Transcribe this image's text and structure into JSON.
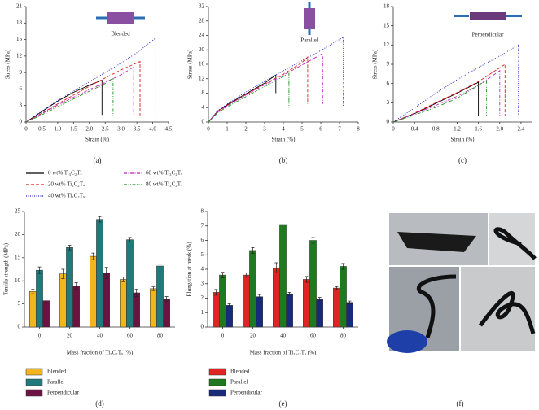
{
  "chart_data": [
    {
      "type": "line",
      "annotation": "Blended",
      "xlabel": "Strain (%)",
      "ylabel": "Stress (MPa)",
      "panel": "(a)",
      "xlim": [
        0,
        4.5
      ],
      "xticks": [
        0,
        0.5,
        {
          "value": 1,
          "label": "1.0"
        },
        1.5,
        {
          "value": 2,
          "label": "2.0"
        },
        2.5,
        {
          "value": 3,
          "label": "3.0"
        },
        3.5,
        {
          "value": 4,
          "label": "4.0"
        },
        4.5
      ],
      "ylim": [
        0,
        21
      ],
      "yticks": [
        0,
        3,
        6,
        9,
        12,
        15,
        18,
        21
      ],
      "series": [
        {
          "name": "0 wt% Ti₃C₂Tₓ",
          "color": "#000000",
          "style": "solid",
          "x": [
            0,
            0.5,
            1,
            1.5,
            2,
            2.4,
            2.4
          ],
          "values": [
            0,
            1.9,
            3.8,
            5.4,
            6.7,
            7.6,
            1.3
          ]
        },
        {
          "name": "20 wt% Ti₃C₂Tₓ",
          "color": "#e02020",
          "style": "dashed",
          "x": [
            0,
            0.5,
            1,
            1.5,
            2,
            2.5,
            3,
            3.6,
            3.6
          ],
          "values": [
            0,
            1.6,
            3.3,
            4.9,
            6.5,
            8,
            9.5,
            11,
            1.2
          ]
        },
        {
          "name": "40 wt% Ti₃C₂Tₓ",
          "color": "#2020c0",
          "style": "dotted",
          "x": [
            0,
            0.5,
            1,
            1.5,
            2,
            2.5,
            3,
            3.5,
            4.1,
            4.1
          ],
          "values": [
            0,
            2,
            3.9,
            5.6,
            7.3,
            9,
            10.7,
            12.6,
            15.3,
            1.3
          ]
        },
        {
          "name": "60 wt% Ti₃C₂Tₓ",
          "color": "#c020c0",
          "style": "dashdot",
          "x": [
            0,
            0.5,
            1,
            1.5,
            2,
            2.5,
            3,
            3.4,
            3.4
          ],
          "values": [
            0,
            1.5,
            3.1,
            4.5,
            5.9,
            7.2,
            8.6,
            10,
            1.3
          ]
        },
        {
          "name": "80 wt% Ti₃C₂Tₓ",
          "color": "#209020",
          "style": "dashdotdot",
          "x": [
            0,
            0.5,
            1,
            1.5,
            2,
            2.5,
            2.75,
            2.75
          ],
          "values": [
            0,
            1.3,
            2.8,
            4.2,
            5.6,
            7,
            8,
            1.2
          ]
        }
      ]
    },
    {
      "type": "line",
      "annotation": "Parallel",
      "xlabel": "Strain (%)",
      "ylabel": "Stress (MPa)",
      "panel": "(b)",
      "xlim": [
        0,
        8
      ],
      "xticks": [
        0,
        1,
        2,
        3,
        4,
        5,
        6,
        7,
        8
      ],
      "ylim": [
        0,
        32
      ],
      "yticks": [
        0,
        4,
        8,
        12,
        16,
        20,
        24,
        28,
        32
      ],
      "series": [
        {
          "x": [
            0,
            0.5,
            1,
            2,
            3,
            3.6,
            3.6
          ],
          "values": [
            0,
            3,
            4.8,
            7.8,
            10.8,
            13,
            8
          ]
        },
        {
          "x": [
            0,
            0.5,
            1,
            2,
            3,
            4,
            5,
            5.3,
            5.3
          ],
          "values": [
            0,
            3,
            4.6,
            7.6,
            10.5,
            13.3,
            16.5,
            18,
            5
          ]
        },
        {
          "x": [
            0,
            0.5,
            1,
            2,
            3,
            4,
            5,
            6,
            7.2,
            7.2
          ],
          "values": [
            0,
            3.2,
            5,
            8.3,
            11.3,
            14.2,
            17,
            19.8,
            23.5,
            4.5
          ]
        },
        {
          "x": [
            0,
            0.5,
            1,
            2,
            3,
            4,
            5,
            6.1,
            6.1
          ],
          "values": [
            0,
            2.8,
            4.5,
            7.5,
            10.3,
            13,
            15.8,
            19,
            5
          ]
        },
        {
          "x": [
            0,
            0.5,
            1,
            2,
            3,
            4.3,
            4.3
          ],
          "values": [
            0,
            2.6,
            4.2,
            7,
            9.8,
            13.5,
            4
          ]
        }
      ]
    },
    {
      "type": "line",
      "annotation": "Perpendicular",
      "xlabel": "Strain (%)",
      "ylabel": "Stress (MPa)",
      "panel": "(c)",
      "xlim": [
        0,
        2.6
      ],
      "xticks": [
        0,
        0.4,
        0.8,
        1.2,
        1.6,
        {
          "value": 2,
          "label": "2.0"
        },
        2.4
      ],
      "ylim": [
        0,
        18
      ],
      "yticks": [
        0,
        3,
        6,
        9,
        12,
        15,
        18
      ],
      "series": [
        {
          "x": [
            0,
            0.4,
            0.8,
            1.2,
            1.6,
            1.6
          ],
          "values": [
            0,
            1.3,
            2.9,
            4.5,
            6.2,
            1
          ]
        },
        {
          "x": [
            0,
            0.4,
            0.8,
            1.2,
            1.6,
            2.1,
            2.1
          ],
          "values": [
            0,
            1.4,
            3,
            4.6,
            6.3,
            9,
            1
          ]
        },
        {
          "x": [
            0,
            0.4,
            0.8,
            1.2,
            1.6,
            2,
            2.35,
            2.35
          ],
          "values": [
            0,
            2.2,
            4.5,
            6.6,
            8.5,
            10.3,
            12,
            1
          ]
        },
        {
          "x": [
            0,
            0.4,
            0.8,
            1.2,
            1.6,
            2,
            2
          ],
          "values": [
            0,
            1.3,
            2.6,
            4,
            5.7,
            8,
            1
          ]
        },
        {
          "x": [
            0,
            0.4,
            0.8,
            1.2,
            1.75,
            1.75
          ],
          "values": [
            0,
            1.1,
            2.3,
            3.7,
            6.5,
            1
          ]
        }
      ]
    },
    {
      "type": "bar",
      "xlabel": "Mass fraction of Ti₃C₂Tₓ (%)",
      "ylabel": "Tensile strength (MPa)",
      "panel": "(d)",
      "categories": [
        "0",
        "20",
        "40",
        "60",
        "80"
      ],
      "ylim": [
        0,
        25
      ],
      "yticks": [
        0,
        5,
        10,
        15,
        20,
        25
      ],
      "series": [
        {
          "name": "Blended",
          "color": "#f2b51c",
          "values": [
            7.7,
            11.5,
            15.3,
            10.3,
            8.3
          ],
          "errors": [
            0.5,
            1,
            0.7,
            0.5,
            0.4
          ]
        },
        {
          "name": "Parallel",
          "color": "#1f7b7b",
          "values": [
            12.3,
            17.2,
            23.3,
            18.9,
            13.2
          ],
          "errors": [
            0.7,
            0.5,
            0.6,
            0.5,
            0.4
          ]
        },
        {
          "name": "Perpendicular",
          "color": "#6b1442",
          "values": [
            5.7,
            8.9,
            11.7,
            7.4,
            6.1
          ],
          "errors": [
            0.4,
            0.7,
            1.2,
            0.8,
            0.5
          ]
        }
      ]
    },
    {
      "type": "bar",
      "xlabel": "Mass fraction of Ti₃C₂Tₓ (%)",
      "ylabel": "Elongation at break (%)",
      "panel": "(e)",
      "categories": [
        "0",
        "20",
        "40",
        "60",
        "80"
      ],
      "ylim": [
        0,
        8
      ],
      "yticks": [
        0,
        1,
        2,
        3,
        4,
        5,
        6,
        7,
        8
      ],
      "series": [
        {
          "name": "Blended",
          "color": "#e02424",
          "values": [
            2.4,
            3.6,
            4.1,
            3.3,
            2.7
          ],
          "errors": [
            0.2,
            0.15,
            0.35,
            0.2,
            0.1
          ]
        },
        {
          "name": "Parallel",
          "color": "#1f7a1f",
          "values": [
            3.6,
            5.3,
            7.1,
            6,
            4.2
          ],
          "errors": [
            0.2,
            0.2,
            0.3,
            0.2,
            0.2
          ]
        },
        {
          "name": "Perpendicular",
          "color": "#1a2a7a",
          "values": [
            1.5,
            2.1,
            2.3,
            1.9,
            1.7
          ],
          "errors": [
            0.1,
            0.15,
            0.1,
            0.15,
            0.1
          ]
        }
      ]
    }
  ],
  "photo_panel": "(f)"
}
